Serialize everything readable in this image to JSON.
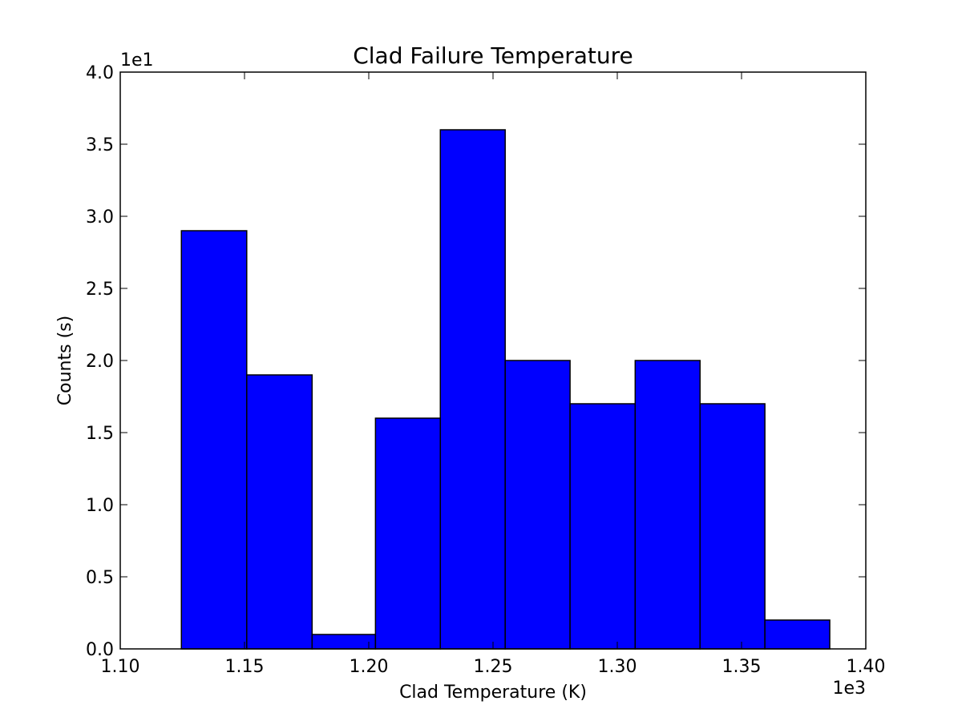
{
  "chart_data": {
    "type": "bar",
    "title": "Clad Failure Temperature",
    "xlabel": "Clad Temperature (K)",
    "ylabel": "Counts (s)",
    "x_offset_label": "1e3",
    "y_offset_label": "1e1",
    "xlim": [
      1.1,
      1.4
    ],
    "ylim": [
      0.0,
      4.0
    ],
    "x_ticks": [
      "1.10",
      "1.15",
      "1.20",
      "1.25",
      "1.30",
      "1.35",
      "1.40"
    ],
    "y_ticks": [
      "0.0",
      "0.5",
      "1.0",
      "1.5",
      "2.0",
      "2.5",
      "3.0",
      "3.5",
      "4.0"
    ],
    "bins": [
      {
        "start": 1.1246,
        "end": 1.1509,
        "value": 2.9
      },
      {
        "start": 1.1509,
        "end": 1.1772,
        "value": 1.9
      },
      {
        "start": 1.1772,
        "end": 1.2027,
        "value": 0.1
      },
      {
        "start": 1.2027,
        "end": 1.2288,
        "value": 1.6
      },
      {
        "start": 1.2288,
        "end": 1.2549,
        "value": 3.6
      },
      {
        "start": 1.2549,
        "end": 1.281,
        "value": 2.0
      },
      {
        "start": 1.281,
        "end": 1.3072,
        "value": 1.7
      },
      {
        "start": 1.3072,
        "end": 1.3333,
        "value": 2.0
      },
      {
        "start": 1.3333,
        "end": 1.3594,
        "value": 1.7
      },
      {
        "start": 1.3594,
        "end": 1.3855,
        "value": 0.2
      }
    ],
    "bar_color": "#0000ff",
    "edge_color": "#000000",
    "grid": false,
    "legend": "none"
  }
}
